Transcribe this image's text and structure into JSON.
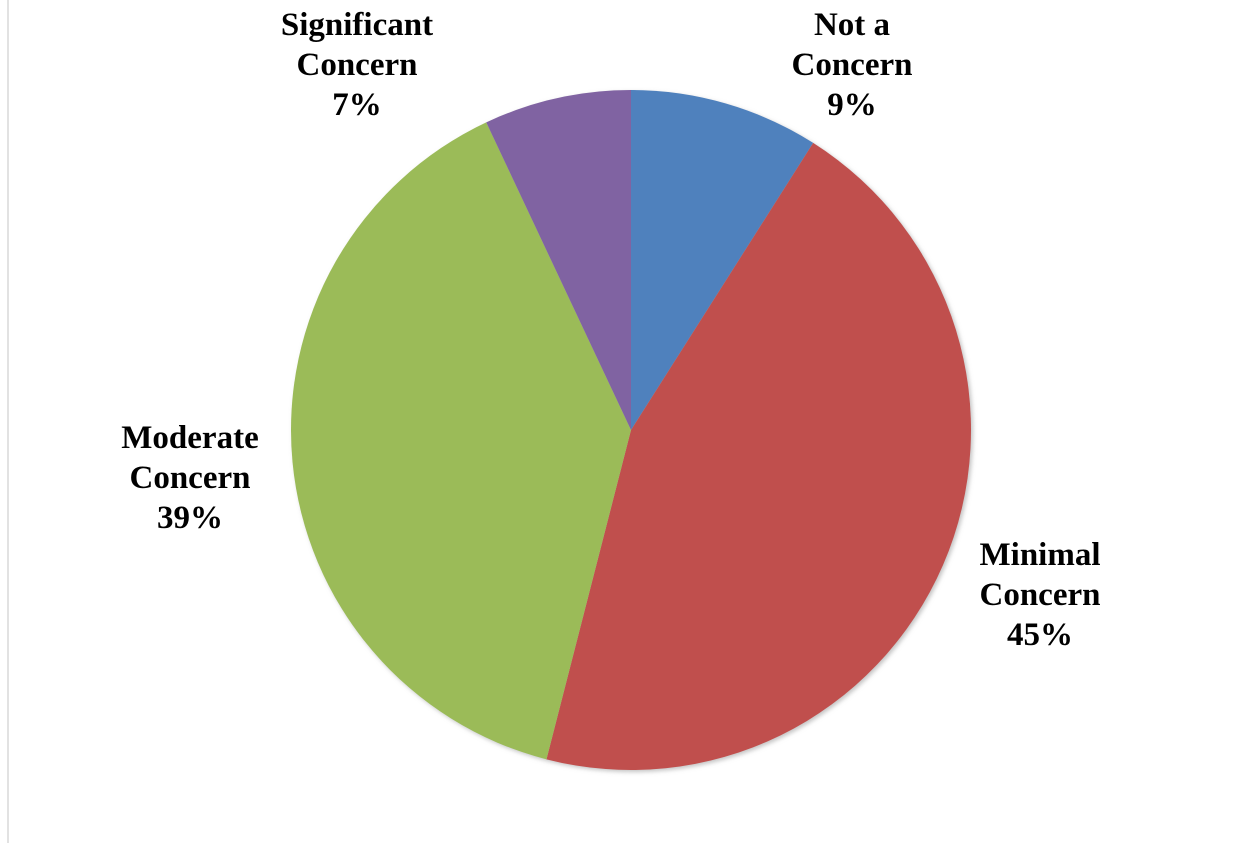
{
  "chart_data": {
    "type": "pie",
    "categories": [
      "Not a Concern",
      "Minimal Concern",
      "Moderate Concern",
      "Significant Concern"
    ],
    "values": [
      9,
      45,
      39,
      7
    ],
    "value_labels": [
      "9%",
      "45%",
      "39%",
      "7%"
    ],
    "colors": [
      "#4f81bd",
      "#c0504d",
      "#9bbb59",
      "#8064a2"
    ]
  }
}
